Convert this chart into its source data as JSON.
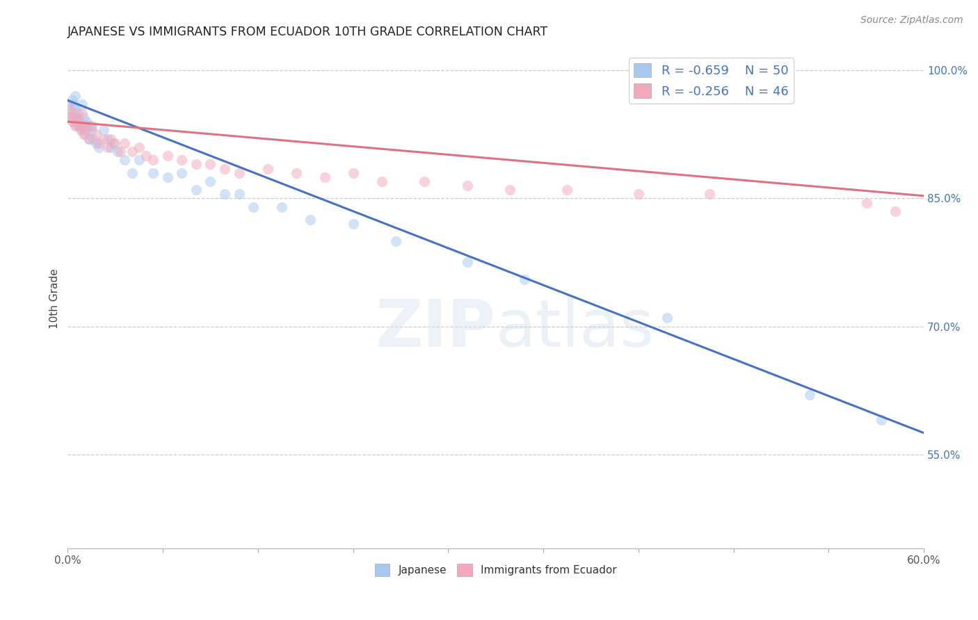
{
  "title": "JAPANESE VS IMMIGRANTS FROM ECUADOR 10TH GRADE CORRELATION CHART",
  "source": "Source: ZipAtlas.com",
  "ylabel": "10th Grade",
  "watermark": "ZIPatlas",
  "x_min": 0.0,
  "x_max": 0.6,
  "y_min": 0.44,
  "y_max": 1.025,
  "x_ticks": [
    0.0,
    0.06667,
    0.13333,
    0.2,
    0.26667,
    0.33333,
    0.4,
    0.46667,
    0.53333,
    0.6
  ],
  "x_tick_labels": [
    "0.0%",
    "",
    "",
    "",
    "",
    "",
    "",
    "",
    "",
    "60.0%"
  ],
  "y_ticks_right": [
    0.55,
    0.7,
    0.85,
    1.0
  ],
  "y_tick_labels_right": [
    "55.0%",
    "70.0%",
    "85.0%",
    "100.0%"
  ],
  "legend_r1": "R = -0.659",
  "legend_n1": "N = 50",
  "legend_r2": "R = -0.256",
  "legend_n2": "N = 46",
  "color_blue": "#A8C8F0",
  "color_pink": "#F4A8BB",
  "color_blue_line": "#4472C4",
  "color_pink_line": "#E07080",
  "color_text_blue": "#4472C4",
  "dot_size": 120,
  "dot_alpha": 0.5,
  "japanese_x": [
    0.001,
    0.002,
    0.003,
    0.003,
    0.004,
    0.004,
    0.005,
    0.005,
    0.006,
    0.006,
    0.007,
    0.008,
    0.009,
    0.01,
    0.01,
    0.011,
    0.012,
    0.013,
    0.014,
    0.015,
    0.016,
    0.017,
    0.018,
    0.02,
    0.022,
    0.025,
    0.028,
    0.03,
    0.032,
    0.035,
    0.04,
    0.045,
    0.05,
    0.06,
    0.07,
    0.08,
    0.09,
    0.1,
    0.11,
    0.12,
    0.13,
    0.15,
    0.17,
    0.2,
    0.23,
    0.28,
    0.32,
    0.42,
    0.52,
    0.57
  ],
  "japanese_y": [
    0.96,
    0.95,
    0.965,
    0.945,
    0.96,
    0.94,
    0.97,
    0.955,
    0.945,
    0.935,
    0.95,
    0.94,
    0.935,
    0.96,
    0.93,
    0.945,
    0.925,
    0.94,
    0.935,
    0.92,
    0.935,
    0.93,
    0.92,
    0.915,
    0.91,
    0.93,
    0.92,
    0.91,
    0.915,
    0.905,
    0.895,
    0.88,
    0.895,
    0.88,
    0.875,
    0.88,
    0.86,
    0.87,
    0.855,
    0.855,
    0.84,
    0.84,
    0.825,
    0.82,
    0.8,
    0.775,
    0.755,
    0.71,
    0.62,
    0.59
  ],
  "ecuador_x": [
    0.001,
    0.002,
    0.003,
    0.004,
    0.005,
    0.006,
    0.007,
    0.008,
    0.009,
    0.01,
    0.011,
    0.012,
    0.013,
    0.015,
    0.017,
    0.02,
    0.022,
    0.025,
    0.028,
    0.03,
    0.033,
    0.037,
    0.04,
    0.045,
    0.05,
    0.055,
    0.06,
    0.07,
    0.08,
    0.09,
    0.1,
    0.11,
    0.12,
    0.14,
    0.16,
    0.18,
    0.2,
    0.22,
    0.25,
    0.28,
    0.31,
    0.35,
    0.4,
    0.45,
    0.56,
    0.58
  ],
  "ecuador_y": [
    0.945,
    0.955,
    0.94,
    0.95,
    0.935,
    0.945,
    0.94,
    0.935,
    0.93,
    0.95,
    0.925,
    0.935,
    0.93,
    0.92,
    0.935,
    0.925,
    0.915,
    0.92,
    0.91,
    0.92,
    0.915,
    0.905,
    0.915,
    0.905,
    0.91,
    0.9,
    0.895,
    0.9,
    0.895,
    0.89,
    0.89,
    0.885,
    0.88,
    0.885,
    0.88,
    0.875,
    0.88,
    0.87,
    0.87,
    0.865,
    0.86,
    0.86,
    0.855,
    0.855,
    0.845,
    0.835
  ],
  "blue_line_x": [
    0.0,
    0.6
  ],
  "blue_line_y": [
    0.965,
    0.575
  ],
  "pink_line_x": [
    0.0,
    0.6
  ],
  "pink_line_y": [
    0.94,
    0.853
  ],
  "grid_color": "#CCCCCC",
  "background_color": "#FFFFFF"
}
